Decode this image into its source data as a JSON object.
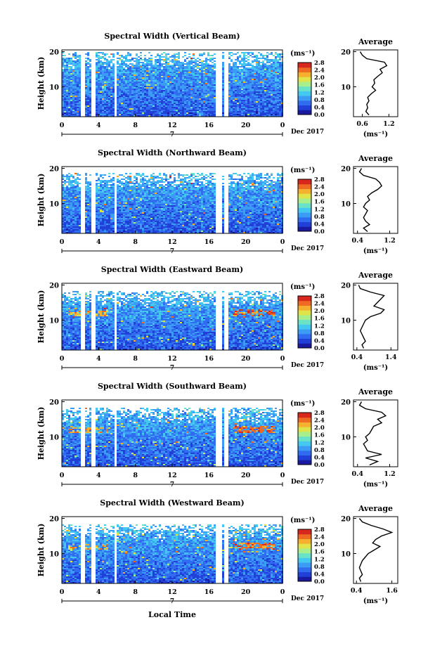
{
  "figure": {
    "xlabel": "Local Time",
    "date_label": "Dec 2017",
    "date_tick": "7",
    "ylabel": "Height (km)",
    "avg_xlabel": "(ms⁻¹)",
    "avg_title": "Average",
    "cbar_unit": "(ms⁻¹)"
  },
  "colormap": [
    "#1a1aa0",
    "#2040d8",
    "#2f6cf0",
    "#3c9cf5",
    "#45c8f0",
    "#6ae2c8",
    "#a8ee8a",
    "#e0e448",
    "#f5b030",
    "#ef6a22",
    "#d8281e"
  ],
  "chart_data": [
    {
      "type": "heatmap",
      "title": "Spectral Width (Vertical Beam)",
      "xlabel": "Local Time",
      "ylabel": "Height (km)",
      "x_ticks": [
        "0",
        "4",
        "8",
        "12",
        "16",
        "20",
        "0"
      ],
      "y_ticks": [
        "10",
        "20"
      ],
      "xlim": [
        0,
        24
      ],
      "ylim": [
        1.5,
        20.5
      ],
      "data_gaps_hours": [
        [
          2.0,
          2.5
        ],
        [
          3.1,
          3.6
        ],
        [
          5.6,
          5.9
        ],
        [
          16.6,
          17.2
        ],
        [
          17.6,
          18.0
        ]
      ],
      "colorbar": {
        "unit": "(ms⁻¹)",
        "ticks": [
          "2.8",
          "2.4",
          "2.0",
          "1.6",
          "1.2",
          "0.8",
          "0.4",
          "0.0"
        ],
        "range": [
          0.0,
          2.8
        ]
      },
      "average_profile": {
        "title": "Average",
        "xlabel": "(ms⁻¹)",
        "x_ticks": [
          "0.6",
          "1.2"
        ],
        "xlim": [
          0.4,
          1.4
        ],
        "ylim": [
          1.5,
          20.5
        ],
        "y_ticks": [
          "10",
          "20"
        ],
        "height_km": [
          2,
          3,
          4,
          5,
          6,
          7,
          8,
          9,
          10,
          11,
          12,
          13,
          14,
          15,
          16,
          17,
          18,
          19,
          20
        ],
        "width_ms": [
          0.75,
          0.68,
          0.72,
          0.7,
          0.75,
          0.72,
          0.8,
          0.9,
          0.82,
          0.88,
          0.86,
          0.95,
          1.05,
          1.0,
          1.15,
          1.1,
          0.7,
          0.6,
          0.55
        ]
      }
    },
    {
      "type": "heatmap",
      "title": "Spectral Width (Northward Beam)",
      "xlabel": "Local Time",
      "ylabel": "Height (km)",
      "x_ticks": [
        "0",
        "4",
        "8",
        "12",
        "16",
        "20",
        "0"
      ],
      "y_ticks": [
        "10",
        "20"
      ],
      "xlim": [
        0,
        24
      ],
      "ylim": [
        1.5,
        20.5
      ],
      "data_gaps_hours": [
        [
          2.0,
          2.5
        ],
        [
          3.1,
          3.6
        ],
        [
          5.6,
          5.9
        ],
        [
          16.6,
          17.2
        ],
        [
          17.6,
          18.0
        ]
      ],
      "colorbar": {
        "unit": "(ms⁻¹)",
        "ticks": [
          "2.8",
          "2.4",
          "2.0",
          "1.6",
          "1.2",
          "0.8",
          "0.4",
          "0.0"
        ],
        "range": [
          0.0,
          2.8
        ]
      },
      "average_profile": {
        "title": "Average",
        "xlabel": "(ms⁻¹)",
        "x_ticks": [
          "0.4",
          "1.2"
        ],
        "xlim": [
          0.3,
          1.4
        ],
        "ylim": [
          1.5,
          20.5
        ],
        "y_ticks": [
          "10",
          "20"
        ],
        "height_km": [
          2,
          3,
          4,
          5,
          6,
          7,
          8,
          9,
          10,
          11,
          12,
          13,
          14,
          15,
          16,
          17,
          18,
          19,
          20
        ],
        "width_ms": [
          0.65,
          0.55,
          0.7,
          0.6,
          0.55,
          0.6,
          0.65,
          0.55,
          0.6,
          0.7,
          0.65,
          0.75,
          0.9,
          1.0,
          0.95,
          0.85,
          0.55,
          0.45,
          0.5
        ]
      }
    },
    {
      "type": "heatmap",
      "title": "Spectral Width (Eastward Beam)",
      "xlabel": "Local Time",
      "ylabel": "Height (km)",
      "x_ticks": [
        "0",
        "4",
        "8",
        "12",
        "16",
        "20",
        "0"
      ],
      "y_ticks": [
        "10",
        "20"
      ],
      "xlim": [
        0,
        24
      ],
      "ylim": [
        1.5,
        20.5
      ],
      "data_gaps_hours": [
        [
          2.0,
          2.5
        ],
        [
          3.1,
          3.6
        ],
        [
          5.6,
          5.9
        ],
        [
          16.6,
          17.2
        ],
        [
          17.6,
          18.0
        ]
      ],
      "colorbar": {
        "unit": "(ms⁻¹)",
        "ticks": [
          "2.8",
          "2.4",
          "2.0",
          "1.6",
          "1.2",
          "0.8",
          "0.4",
          "0.0"
        ],
        "range": [
          0.0,
          2.8
        ]
      },
      "average_profile": {
        "title": "Average",
        "xlabel": "(ms⁻¹)",
        "x_ticks": [
          "0.4",
          "1.4"
        ],
        "xlim": [
          0.3,
          1.6
        ],
        "ylim": [
          1.5,
          20.5
        ],
        "y_ticks": [
          "10",
          "20"
        ],
        "height_km": [
          2,
          3,
          4,
          5,
          6,
          7,
          8,
          9,
          10,
          11,
          12,
          13,
          14,
          15,
          16,
          17,
          18,
          19,
          20
        ],
        "width_ms": [
          0.6,
          0.55,
          0.65,
          0.6,
          0.55,
          0.5,
          0.55,
          0.6,
          0.65,
          0.8,
          1.1,
          1.2,
          0.9,
          1.0,
          1.1,
          1.2,
          0.8,
          0.5,
          0.45
        ]
      }
    },
    {
      "type": "heatmap",
      "title": "Spectral Width (Southward Beam)",
      "xlabel": "Local Time",
      "ylabel": "Height (km)",
      "x_ticks": [
        "0",
        "4",
        "8",
        "12",
        "16",
        "20",
        "0"
      ],
      "y_ticks": [
        "10",
        "20"
      ],
      "xlim": [
        0,
        24
      ],
      "ylim": [
        1.5,
        20.5
      ],
      "data_gaps_hours": [
        [
          2.0,
          2.5
        ],
        [
          3.1,
          3.6
        ],
        [
          5.6,
          5.9
        ],
        [
          16.6,
          17.2
        ],
        [
          17.6,
          18.0
        ]
      ],
      "colorbar": {
        "unit": "(ms⁻¹)",
        "ticks": [
          "2.8",
          "2.4",
          "2.0",
          "1.6",
          "1.2",
          "0.8",
          "0.4",
          "0.0"
        ],
        "range": [
          0.0,
          2.8
        ]
      },
      "average_profile": {
        "title": "Average",
        "xlabel": "(ms⁻¹)",
        "x_ticks": [
          "0.4",
          "1.2"
        ],
        "xlim": [
          0.3,
          1.4
        ],
        "ylim": [
          1.5,
          20.5
        ],
        "y_ticks": [
          "10",
          "20"
        ],
        "height_km": [
          2,
          3,
          4,
          5,
          6,
          7,
          8,
          9,
          10,
          11,
          12,
          13,
          14,
          15,
          16,
          17,
          18,
          19,
          20
        ],
        "width_ms": [
          0.7,
          0.9,
          0.6,
          1.0,
          0.65,
          0.6,
          0.55,
          0.65,
          0.6,
          0.7,
          0.75,
          0.8,
          1.0,
          0.9,
          1.1,
          1.0,
          0.6,
          0.45,
          0.5
        ]
      }
    },
    {
      "type": "heatmap",
      "title": "Spectral Width (Westward Beam)",
      "xlabel": "Local Time",
      "ylabel": "Height (km)",
      "x_ticks": [
        "0",
        "4",
        "8",
        "12",
        "16",
        "20",
        "0"
      ],
      "y_ticks": [
        "10",
        "20"
      ],
      "xlim": [
        0,
        24
      ],
      "ylim": [
        1.5,
        20.5
      ],
      "data_gaps_hours": [
        [
          2.0,
          2.5
        ],
        [
          3.1,
          3.6
        ],
        [
          5.6,
          5.9
        ],
        [
          16.6,
          17.2
        ],
        [
          17.6,
          18.0
        ]
      ],
      "colorbar": {
        "unit": "(ms⁻¹)",
        "ticks": [
          "2.8",
          "2.4",
          "2.0",
          "1.6",
          "1.2",
          "0.8",
          "0.4",
          "0.0"
        ],
        "range": [
          0.0,
          2.8
        ]
      },
      "average_profile": {
        "title": "Average",
        "xlabel": "(ms⁻¹)",
        "x_ticks": [
          "0.4",
          "1.6"
        ],
        "xlim": [
          0.3,
          1.8
        ],
        "ylim": [
          1.5,
          20.5
        ],
        "y_ticks": [
          "10",
          "20"
        ],
        "height_km": [
          2,
          3,
          4,
          5,
          6,
          7,
          8,
          9,
          10,
          11,
          12,
          13,
          14,
          15,
          16,
          17,
          18,
          19,
          20
        ],
        "width_ms": [
          0.55,
          0.5,
          0.6,
          0.55,
          0.5,
          0.55,
          0.6,
          0.7,
          0.8,
          1.0,
          1.2,
          0.95,
          1.05,
          1.25,
          1.6,
          1.3,
          0.9,
          0.6,
          0.5
        ]
      }
    }
  ]
}
